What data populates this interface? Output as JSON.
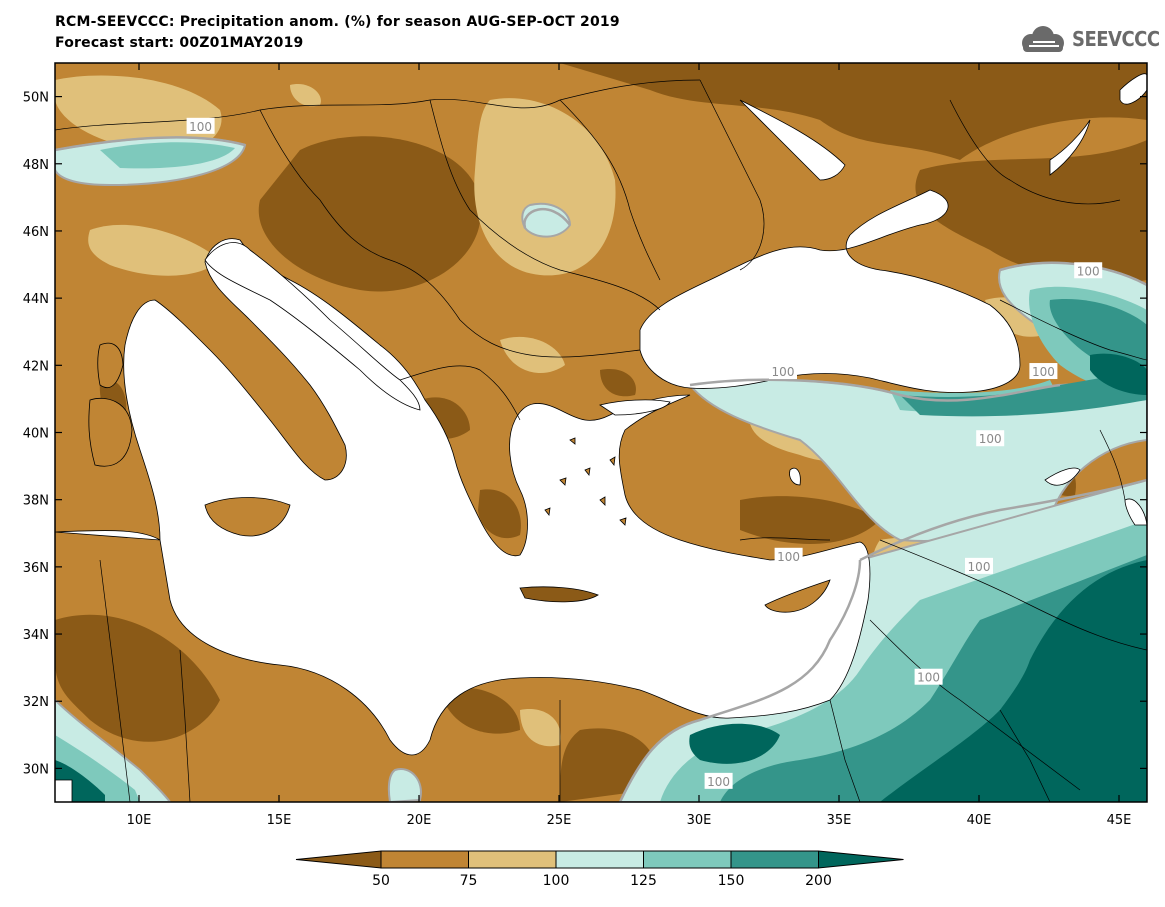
{
  "title": {
    "line1": "RCM-SEEVCCC: Precipitation anom. (%) for season AUG-SEP-OCT 2019",
    "line2": "Forecast start: 00Z01MAY2019"
  },
  "logo": {
    "text": "SEEVCCC",
    "icon": "cloud-icon"
  },
  "map": {
    "lon_range": [
      7,
      46
    ],
    "lat_range": [
      29,
      51
    ],
    "lat_ticks": [
      {
        "value": 30,
        "label": "30N"
      },
      {
        "value": 32,
        "label": "32N"
      },
      {
        "value": 34,
        "label": "34N"
      },
      {
        "value": 36,
        "label": "36N"
      },
      {
        "value": 38,
        "label": "38N"
      },
      {
        "value": 40,
        "label": "40N"
      },
      {
        "value": 42,
        "label": "42N"
      },
      {
        "value": 44,
        "label": "44N"
      },
      {
        "value": 46,
        "label": "46N"
      },
      {
        "value": 48,
        "label": "48N"
      },
      {
        "value": 50,
        "label": "50N"
      }
    ],
    "lon_ticks": [
      {
        "value": 10,
        "label": "10E"
      },
      {
        "value": 15,
        "label": "15E"
      },
      {
        "value": 20,
        "label": "20E"
      },
      {
        "value": 25,
        "label": "25E"
      },
      {
        "value": 30,
        "label": "30E"
      },
      {
        "value": 35,
        "label": "35E"
      },
      {
        "value": 40,
        "label": "40E"
      },
      {
        "value": 45,
        "label": "45E"
      }
    ],
    "contour_labels": [
      {
        "text": "100",
        "lon": 12.2,
        "lat": 49.1
      },
      {
        "text": "100",
        "lon": 43.9,
        "lat": 44.8
      },
      {
        "text": "100",
        "lon": 33.0,
        "lat": 41.8
      },
      {
        "text": "100",
        "lon": 42.3,
        "lat": 41.8
      },
      {
        "text": "100",
        "lon": 40.4,
        "lat": 39.8
      },
      {
        "text": "100",
        "lon": 40.0,
        "lat": 36.0
      },
      {
        "text": "100",
        "lon": 38.2,
        "lat": 32.7
      },
      {
        "text": "100",
        "lon": 30.7,
        "lat": 29.6
      },
      {
        "text": "100",
        "lon": 33.2,
        "lat": 36.3
      }
    ]
  },
  "colorbar": {
    "colors": [
      "#8b5a17",
      "#c08534",
      "#e0c07a",
      "#c8ebe4",
      "#7ec9bc",
      "#34958a",
      "#00665c"
    ],
    "ticks": [
      "50",
      "75",
      "100",
      "125",
      "150",
      "200"
    ]
  },
  "colors": {
    "very_dry": "#8b5a17",
    "dry": "#c08534",
    "slightly_dry": "#e0c07a",
    "slightly_wet": "#c8ebe4",
    "wet": "#7ec9bc",
    "very_wet": "#34958a",
    "extreme_wet": "#00665c",
    "contour_100": "#a6a6a6",
    "sea": "#ffffff"
  }
}
